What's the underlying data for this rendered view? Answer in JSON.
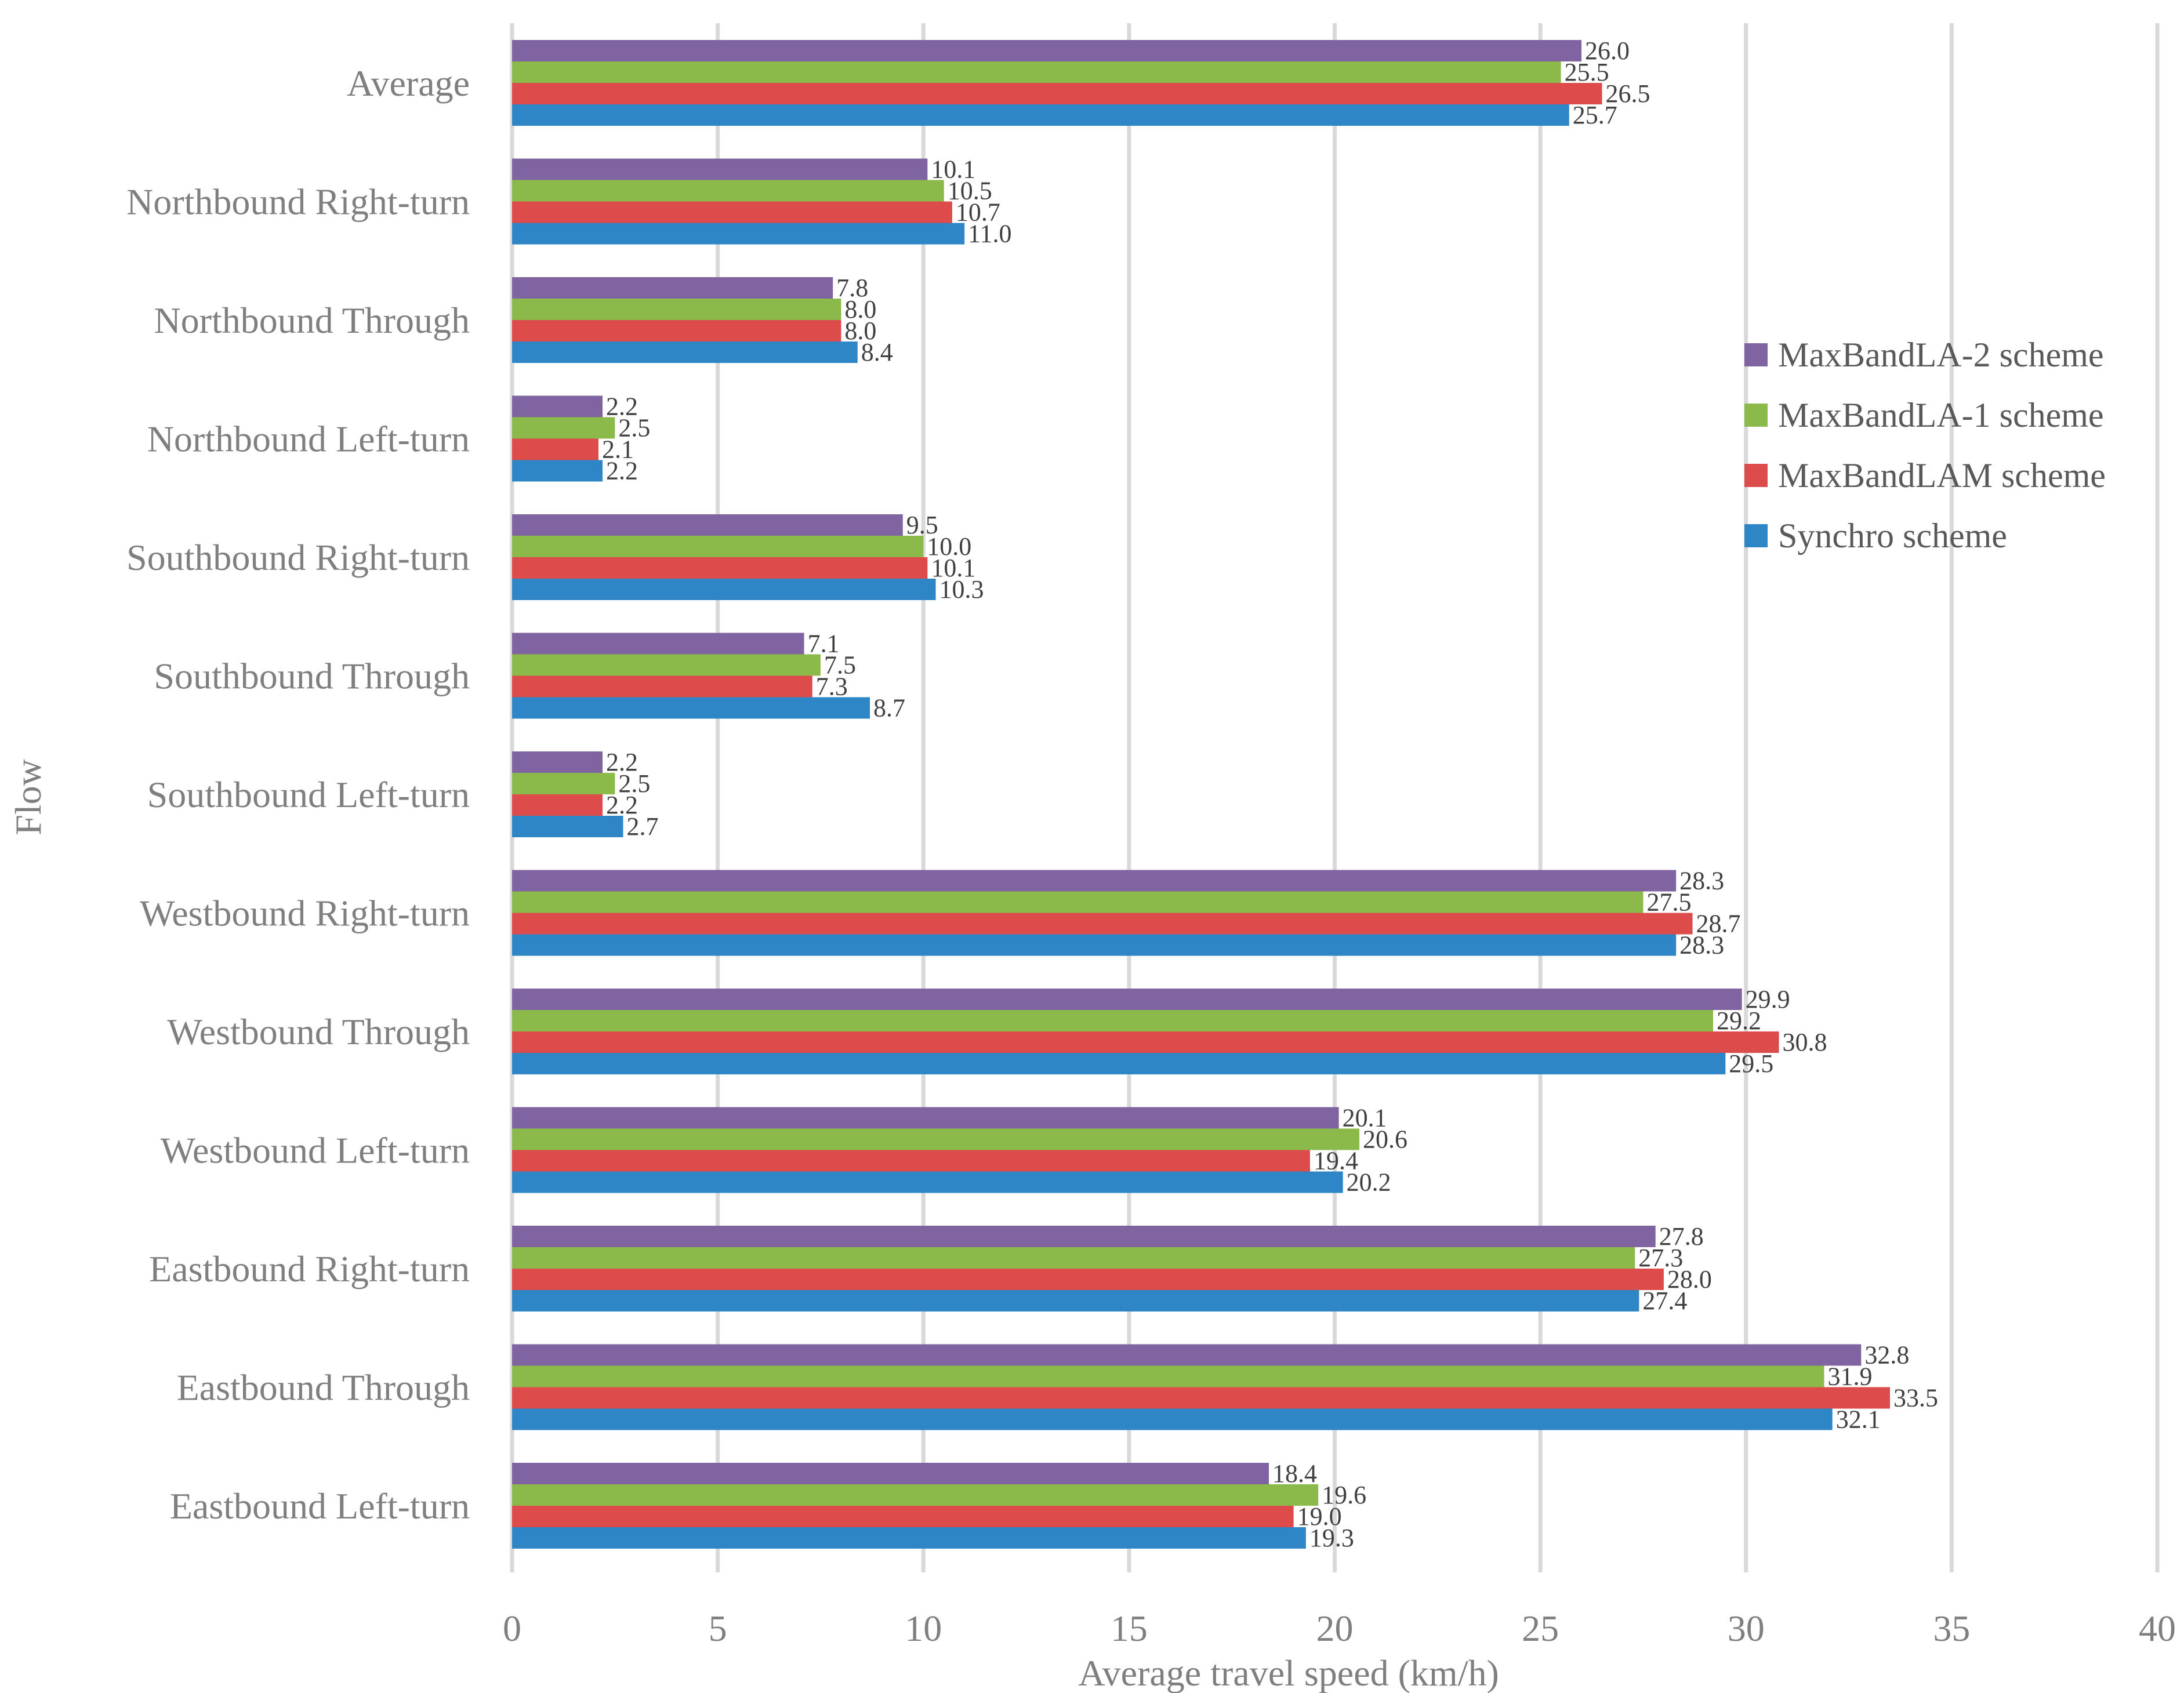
{
  "chart_data": {
    "type": "bar",
    "orientation": "horizontal",
    "xlabel": "Average travel speed (km/h)",
    "ylabel": "Flow",
    "xlim": [
      0,
      40
    ],
    "xticks": [
      0,
      5,
      10,
      15,
      20,
      25,
      30,
      35,
      40
    ],
    "grid": "vertical",
    "legend_position": "right",
    "categories": [
      "Average",
      "Northbound Right-turn",
      "Northbound Through",
      "Northbound Left-turn",
      "Southbound Right-turn",
      "Southbound Through",
      "Southbound Left-turn",
      "Westbound Right-turn",
      "Westbound Through",
      "Westbound Left-turn",
      "Eastbound Right-turn",
      "Eastbound Through",
      "Eastbound Left-turn"
    ],
    "series": [
      {
        "name": "MaxBandLA-2 scheme",
        "color": "#8064a2",
        "values": [
          26.0,
          10.1,
          7.8,
          2.2,
          9.5,
          7.1,
          2.2,
          28.3,
          29.9,
          20.1,
          27.8,
          32.8,
          18.4
        ],
        "labels": [
          "26.0",
          "10.1",
          "7.8",
          "2.2",
          "9.5",
          "7.1",
          "2.2",
          "28.3",
          "29.9",
          "20.1",
          "27.8",
          "32.8",
          "18.4"
        ]
      },
      {
        "name": "MaxBandLA-1 scheme",
        "color": "#8cba4a",
        "values": [
          25.5,
          10.5,
          8.0,
          2.5,
          10.0,
          7.5,
          2.5,
          27.5,
          29.2,
          20.6,
          27.3,
          31.9,
          19.6
        ],
        "labels": [
          "25.5",
          "10.5",
          "8.0",
          "2.5",
          "10.0",
          "7.5",
          "2.5",
          "27.5",
          "29.2",
          "20.6",
          "27.3",
          "31.9",
          "19.6"
        ]
      },
      {
        "name": "MaxBandLAM scheme",
        "color": "#dd4b4b",
        "values": [
          26.5,
          10.7,
          8.0,
          2.1,
          10.1,
          7.3,
          2.2,
          28.7,
          30.8,
          19.4,
          28.0,
          33.5,
          19.0
        ],
        "labels": [
          "26.5",
          "10.7",
          "8.0",
          "2.1",
          "10.1",
          "7.3",
          "2.2",
          "28.7",
          "30.8",
          "19.4",
          "28.0",
          "33.5",
          "19.0"
        ]
      },
      {
        "name": "Synchro scheme",
        "color": "#2e86c7",
        "values": [
          25.7,
          11.0,
          8.4,
          2.2,
          10.3,
          8.7,
          2.7,
          28.3,
          29.5,
          20.2,
          27.4,
          32.1,
          19.3
        ],
        "labels": [
          "25.7",
          "11.0",
          "8.4",
          "2.2",
          "10.3",
          "8.7",
          "2.7",
          "28.3",
          "29.5",
          "20.2",
          "27.4",
          "32.1",
          "19.3"
        ]
      }
    ]
  }
}
